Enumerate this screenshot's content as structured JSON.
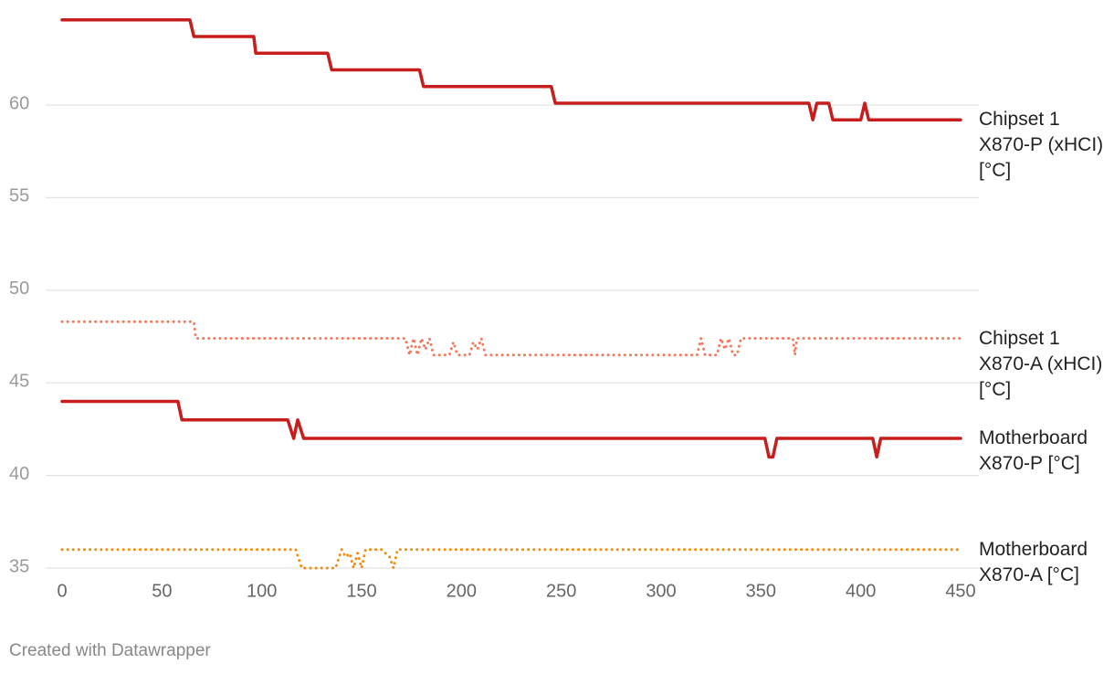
{
  "chart_data": {
    "type": "line",
    "xlim": [
      0,
      450
    ],
    "xticks": [
      0,
      50,
      100,
      150,
      200,
      250,
      300,
      350,
      400,
      450
    ],
    "ylim": [
      35,
      65
    ],
    "yticks": [
      35,
      40,
      45,
      50,
      55,
      60
    ],
    "grid": true,
    "series": [
      {
        "name": "Chipset 1 X870-P (xHCI) [°C]",
        "color": "#c71e1d",
        "style": "solid",
        "x": [
          0,
          64,
          66,
          96,
          97,
          133,
          135,
          179,
          181,
          245,
          247,
          374,
          376,
          378,
          384,
          386,
          400,
          402,
          404,
          450
        ],
        "values": [
          64.6,
          64.6,
          63.7,
          63.7,
          62.8,
          62.8,
          61.9,
          61.9,
          61.0,
          61.0,
          60.1,
          60.1,
          59.2,
          60.1,
          60.1,
          59.2,
          59.2,
          60.1,
          59.2,
          59.2
        ]
      },
      {
        "name": "Chipset 1 X870-A (xHCI) [°C]",
        "color": "#f4795b",
        "style": "dotted",
        "x": [
          0,
          66,
          67,
          172,
          174,
          176,
          178,
          180,
          182,
          184,
          186,
          188,
          194,
          196,
          198,
          204,
          206,
          208,
          210,
          212,
          214,
          318,
          320,
          322,
          328,
          330,
          332,
          334,
          336,
          338,
          340,
          366,
          367,
          368,
          450
        ],
        "values": [
          48.3,
          48.3,
          47.4,
          47.4,
          46.5,
          47.4,
          46.5,
          47.4,
          46.8,
          47.4,
          46.5,
          46.5,
          46.5,
          47.2,
          46.5,
          46.5,
          47.2,
          46.8,
          47.4,
          46.5,
          46.5,
          46.5,
          47.4,
          46.5,
          46.5,
          47.4,
          46.8,
          47.4,
          46.5,
          46.5,
          47.4,
          47.4,
          46.5,
          47.4,
          47.4
        ]
      },
      {
        "name": "Motherboard X870-P [°C]",
        "color": "#c71e1d",
        "style": "solid",
        "x": [
          0,
          58,
          60,
          113,
          116,
          118,
          121,
          352,
          354,
          356,
          358,
          406,
          408,
          410,
          450
        ],
        "values": [
          44,
          44,
          43,
          43,
          42,
          43,
          42,
          42,
          41,
          41,
          42,
          42,
          41,
          42,
          42
        ]
      },
      {
        "name": "Motherboard X870-A [°C]",
        "color": "#f28e0f",
        "style": "dotted",
        "x": [
          0,
          117,
          120,
          137,
          140,
          142,
          144,
          146,
          148,
          150,
          152,
          160,
          164,
          166,
          168,
          450
        ],
        "values": [
          36,
          36,
          35,
          35,
          36,
          35.6,
          35.8,
          35,
          35.8,
          35,
          36,
          36,
          35.6,
          35,
          36,
          36
        ]
      }
    ]
  },
  "footer": "Created with Datawrapper"
}
